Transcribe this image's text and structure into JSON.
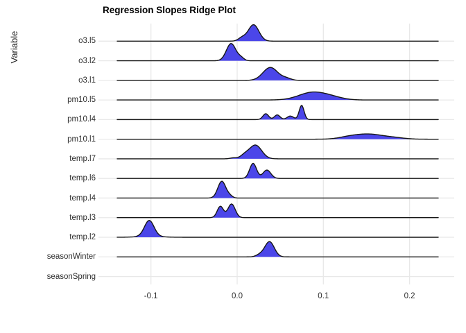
{
  "title": "Regression Slopes Ridge Plot",
  "y_axis_title": "Variable",
  "x_tick_labels": [
    "-0.1",
    "0.0",
    "0.1",
    "0.2"
  ],
  "colors": {
    "fill": "#4b46e9",
    "line": "#161616",
    "grid": "#e8e8e8",
    "text": "#2e2e2e",
    "title": "#000000",
    "background": "#ffffff"
  },
  "chart_data": {
    "type": "ridgeline_density",
    "title": "Regression Slopes Ridge Plot",
    "xlabel": "",
    "ylabel": "Variable",
    "legend_position": "none",
    "grid": "major",
    "x_ticks": [
      -0.1,
      0.0,
      0.1,
      0.2
    ],
    "x_range_data": [
      -0.138,
      0.233
    ],
    "x_range_panel": [
      -0.161,
      0.252
    ],
    "categories": [
      "o3.l5",
      "o3.l2",
      "o3.l1",
      "pm10.l5",
      "pm10.l4",
      "pm10.l1",
      "temp.l7",
      "temp.l6",
      "temp.l4",
      "temp.l3",
      "temp.l2",
      "seasonWinter",
      "seasonSpring"
    ],
    "series": [
      {
        "variable": "o3.l5",
        "modes": [
          {
            "x": 0.019,
            "sd": 0.0062,
            "height": 0.84
          },
          {
            "x": 0.0055,
            "sd": 0.0042,
            "height": 0.16
          }
        ]
      },
      {
        "variable": "o3.l2",
        "modes": [
          {
            "x": -0.007,
            "sd": 0.0055,
            "height": 0.88
          },
          {
            "x": 0.0045,
            "sd": 0.0035,
            "height": 0.14
          }
        ]
      },
      {
        "variable": "o3.l1",
        "modes": [
          {
            "x": 0.0385,
            "sd": 0.0085,
            "height": 0.66
          },
          {
            "x": 0.057,
            "sd": 0.0055,
            "height": 0.1
          }
        ]
      },
      {
        "variable": "pm10.l5",
        "modes": [
          {
            "x": 0.087,
            "sd": 0.0155,
            "height": 0.38
          },
          {
            "x": 0.11,
            "sd": 0.013,
            "height": 0.12
          }
        ]
      },
      {
        "variable": "pm10.l4",
        "modes": [
          {
            "x": 0.0332,
            "sd": 0.0033,
            "height": 0.3
          },
          {
            "x": 0.0465,
            "sd": 0.0033,
            "height": 0.24
          },
          {
            "x": 0.0617,
            "sd": 0.0038,
            "height": 0.18
          },
          {
            "x": 0.0748,
            "sd": 0.0028,
            "height": 0.73
          }
        ]
      },
      {
        "variable": "pm10.l1",
        "modes": [
          {
            "x": 0.152,
            "sd": 0.017,
            "height": 0.26
          },
          {
            "x": 0.128,
            "sd": 0.011,
            "height": 0.07
          },
          {
            "x": 0.183,
            "sd": 0.012,
            "height": 0.06
          }
        ]
      },
      {
        "variable": "temp.l7",
        "modes": [
          {
            "x": 0.0212,
            "sd": 0.0072,
            "height": 0.7
          },
          {
            "x": 0.0085,
            "sd": 0.0048,
            "height": 0.16
          },
          {
            "x": -0.0045,
            "sd": 0.0038,
            "height": 0.05
          }
        ]
      },
      {
        "variable": "temp.l6",
        "modes": [
          {
            "x": 0.0185,
            "sd": 0.004,
            "height": 0.77
          },
          {
            "x": 0.0345,
            "sd": 0.0045,
            "height": 0.43
          }
        ]
      },
      {
        "variable": "temp.l4",
        "modes": [
          {
            "x": -0.0178,
            "sd": 0.0046,
            "height": 0.86
          },
          {
            "x": -0.0085,
            "sd": 0.0032,
            "height": 0.1
          }
        ]
      },
      {
        "variable": "temp.l3",
        "modes": [
          {
            "x": -0.0195,
            "sd": 0.0036,
            "height": 0.58
          },
          {
            "x": -0.0065,
            "sd": 0.0042,
            "height": 0.7
          }
        ]
      },
      {
        "variable": "temp.l2",
        "modes": [
          {
            "x": -0.102,
            "sd": 0.0055,
            "height": 0.8
          },
          {
            "x": -0.102,
            "sd": 0.0125,
            "height": 0.06
          }
        ]
      },
      {
        "variable": "seasonWinter",
        "modes": [
          {
            "x": 0.0375,
            "sd": 0.0055,
            "height": 0.78
          },
          {
            "x": 0.026,
            "sd": 0.0042,
            "height": 0.1
          }
        ]
      },
      {
        "variable": "seasonSpring",
        "modes": []
      }
    ]
  }
}
